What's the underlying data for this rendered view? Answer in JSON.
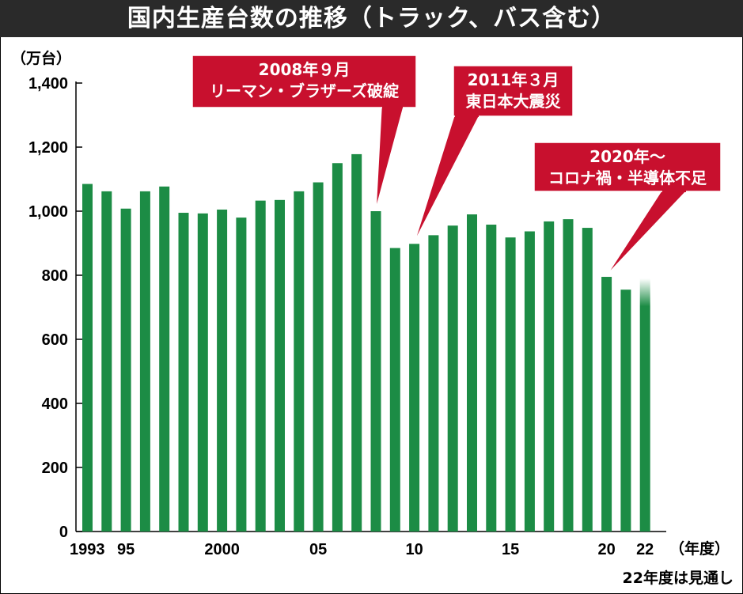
{
  "chart_data": {
    "type": "bar",
    "title": "国内生産台数の推移（トラック、バス含む）",
    "ylabel": "（万台）",
    "xlabel": "（年度）",
    "note": "22年度は見通し",
    "ylim": [
      0,
      1400
    ],
    "yticks": [
      0,
      200,
      400,
      600,
      800,
      1000,
      1200,
      1400
    ],
    "ytick_labels": [
      "0",
      "200",
      "400",
      "600",
      "800",
      "1,000",
      "1,200",
      "1,400"
    ],
    "categories": [
      1993,
      1994,
      1995,
      1996,
      1997,
      1998,
      1999,
      2000,
      2001,
      2002,
      2003,
      2004,
      2005,
      2006,
      2007,
      2008,
      2009,
      2010,
      2011,
      2012,
      2013,
      2014,
      2015,
      2016,
      2017,
      2018,
      2019,
      2020,
      2021,
      2022
    ],
    "xtick_labels": [
      {
        "category": 1993,
        "label": "1993"
      },
      {
        "category": 1995,
        "label": "95"
      },
      {
        "category": 2000,
        "label": "2000"
      },
      {
        "category": 2005,
        "label": "05"
      },
      {
        "category": 2010,
        "label": "10"
      },
      {
        "category": 2015,
        "label": "15"
      },
      {
        "category": 2020,
        "label": "20"
      },
      {
        "category": 2022,
        "label": "22"
      }
    ],
    "values": [
      1085,
      1062,
      1008,
      1062,
      1077,
      995,
      993,
      1005,
      980,
      1033,
      1035,
      1062,
      1090,
      1150,
      1178,
      1000,
      885,
      898,
      925,
      955,
      990,
      958,
      918,
      937,
      968,
      975,
      948,
      795,
      755,
      790
    ],
    "projected_category": 2022,
    "bar_color": "#1c8c45",
    "annotations": [
      {
        "lines": [
          "2008年９月",
          "リーマン・ブラザーズ破綻"
        ],
        "category": 2008
      },
      {
        "lines": [
          "2011年３月",
          "東日本大震災"
        ],
        "category": 2010
      },
      {
        "lines": [
          "2020年～",
          "コロナ禍・半導体不足"
        ],
        "category": 2020
      }
    ],
    "annotation_color": "#c8102e"
  }
}
